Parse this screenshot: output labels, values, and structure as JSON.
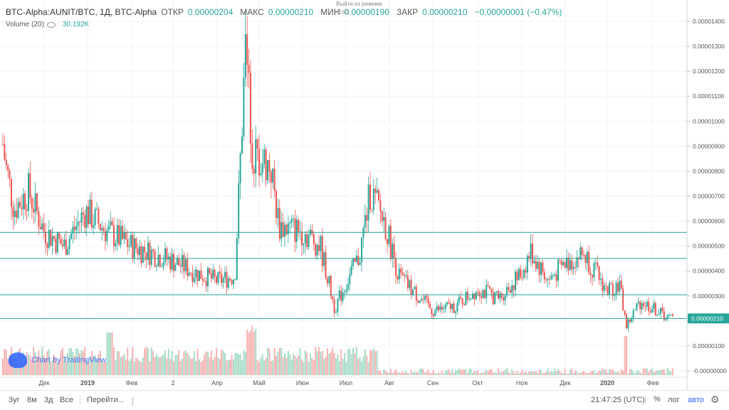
{
  "legend": {
    "symbol": "BTC-Alpha:AUNIT/BTC, 1Д, BTC-Alpha",
    "open_label": "ОТКР",
    "open": "0.00000204",
    "high_label": "МАКС",
    "high": "0.00000210",
    "low_label": "МИН",
    "low": "0.00000190",
    "close_label": "ЗАКР",
    "close": "0.00000210",
    "change": "−0.00000001 (−0.47%)"
  },
  "volume_legend": {
    "label": "Volume (20)",
    "value": "30.192K"
  },
  "overlay": {
    "line1": "Выйти из режима",
    "line2": "(Esc)"
  },
  "watermark": "Chart by TradingView",
  "bottombar": {
    "timeframes": [
      "3уг",
      "8м",
      "3д",
      "Все"
    ],
    "goto": "Перейти...",
    "time": "21:47:25 (UTC)",
    "percent": "%",
    "log": "лог",
    "auto": "авто"
  },
  "colors": {
    "up": "#26a69a",
    "down": "#ef5350",
    "hline": "#26a69a",
    "vol_up": "#a7dcc8",
    "vol_down": "#f7b2b2",
    "price_tag": "#26a69a"
  },
  "icons": {
    "settings": "gear-icon",
    "visibility": "eye-icon",
    "logo": "tradingview-logo-icon"
  },
  "chart_data": {
    "type": "candlestick",
    "xaxis_labels": [
      "Дек",
      "2019",
      "Фев",
      "2",
      "Апр",
      "Май",
      "Июн",
      "Июл",
      "Авг",
      "Сен",
      "Окт",
      "Ноя",
      "Дек",
      "2020",
      "Фев"
    ],
    "yaxis_ticks": [
      "0.00001400",
      "0.00001300",
      "0.00001200",
      "0.00001100",
      "0.00001000",
      "0.00000900",
      "0.00000800",
      "0.00000700",
      "0.00000600",
      "0.00000500",
      "0.00000400",
      "0.00000300",
      "0.00000200",
      "0.00000100",
      "-0.00000000"
    ],
    "ylim": [
      -0.0,
      1.4e-05
    ],
    "last_price": "0.00000210",
    "horizontal_lines": [
      5.55e-06,
      4.5e-06,
      3.05e-06,
      2.1e-06
    ],
    "series_close_approx": [
      {
        "t": "Nov-2018",
        "price": 1e-05
      },
      {
        "t": "Dec-2018",
        "price": 6.5e-06
      },
      {
        "t": "Jan-2019",
        "price": 6e-06
      },
      {
        "t": "Feb-2019",
        "price": 4.5e-06
      },
      {
        "t": "Mar-2019",
        "price": 3.5e-06
      },
      {
        "t": "Apr-2019",
        "price": 3e-06
      },
      {
        "t": "May-2019",
        "price": 8.5e-06
      },
      {
        "t": "Jun-2019",
        "price": 5e-06
      },
      {
        "t": "Jul-2019",
        "price": 6e-06
      },
      {
        "t": "Aug-2019",
        "price": 3.5e-06
      },
      {
        "t": "Sep-2019",
        "price": 2.5e-06
      },
      {
        "t": "Oct-2019",
        "price": 2.5e-06
      },
      {
        "t": "Nov-2019",
        "price": 5e-06
      },
      {
        "t": "Dec-2019",
        "price": 4.2e-06
      },
      {
        "t": "Jan-2020",
        "price": 2.5e-06
      },
      {
        "t": "Feb-2020",
        "price": 2.1e-06
      }
    ]
  }
}
